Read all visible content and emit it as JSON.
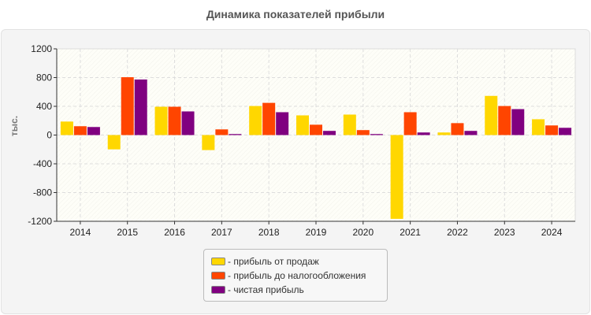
{
  "chart_data": {
    "type": "bar",
    "title": "Динамика показателей прибыли",
    "ylabel": "тыс.",
    "xlabel": "",
    "ylim": [
      -1200,
      1200
    ],
    "yticks": [
      "1200",
      "800",
      "400",
      "0",
      "-400",
      "-800",
      "-1200"
    ],
    "grid": true,
    "legend_position": "bottom",
    "categories": [
      "2014",
      "2015",
      "2016",
      "2017",
      "2018",
      "2019",
      "2020",
      "2021",
      "2022",
      "2023",
      "2024"
    ],
    "series": [
      {
        "name": "- прибыль от продаж",
        "color": "#FFD700",
        "values": [
          188,
          -199,
          394,
          -209,
          404,
          274,
          285,
          -1166,
          36,
          545,
          220
        ]
      },
      {
        "name": "- прибыль до налогообложения",
        "color": "#FF4500",
        "values": [
          123,
          805,
          394,
          79,
          448,
          144,
          69,
          318,
          166,
          404,
          134
        ]
      },
      {
        "name": "- чистая прибыль",
        "color": "#800080",
        "values": [
          112,
          773,
          329,
          14,
          318,
          58,
          14,
          36,
          58,
          361,
          101
        ]
      }
    ]
  }
}
